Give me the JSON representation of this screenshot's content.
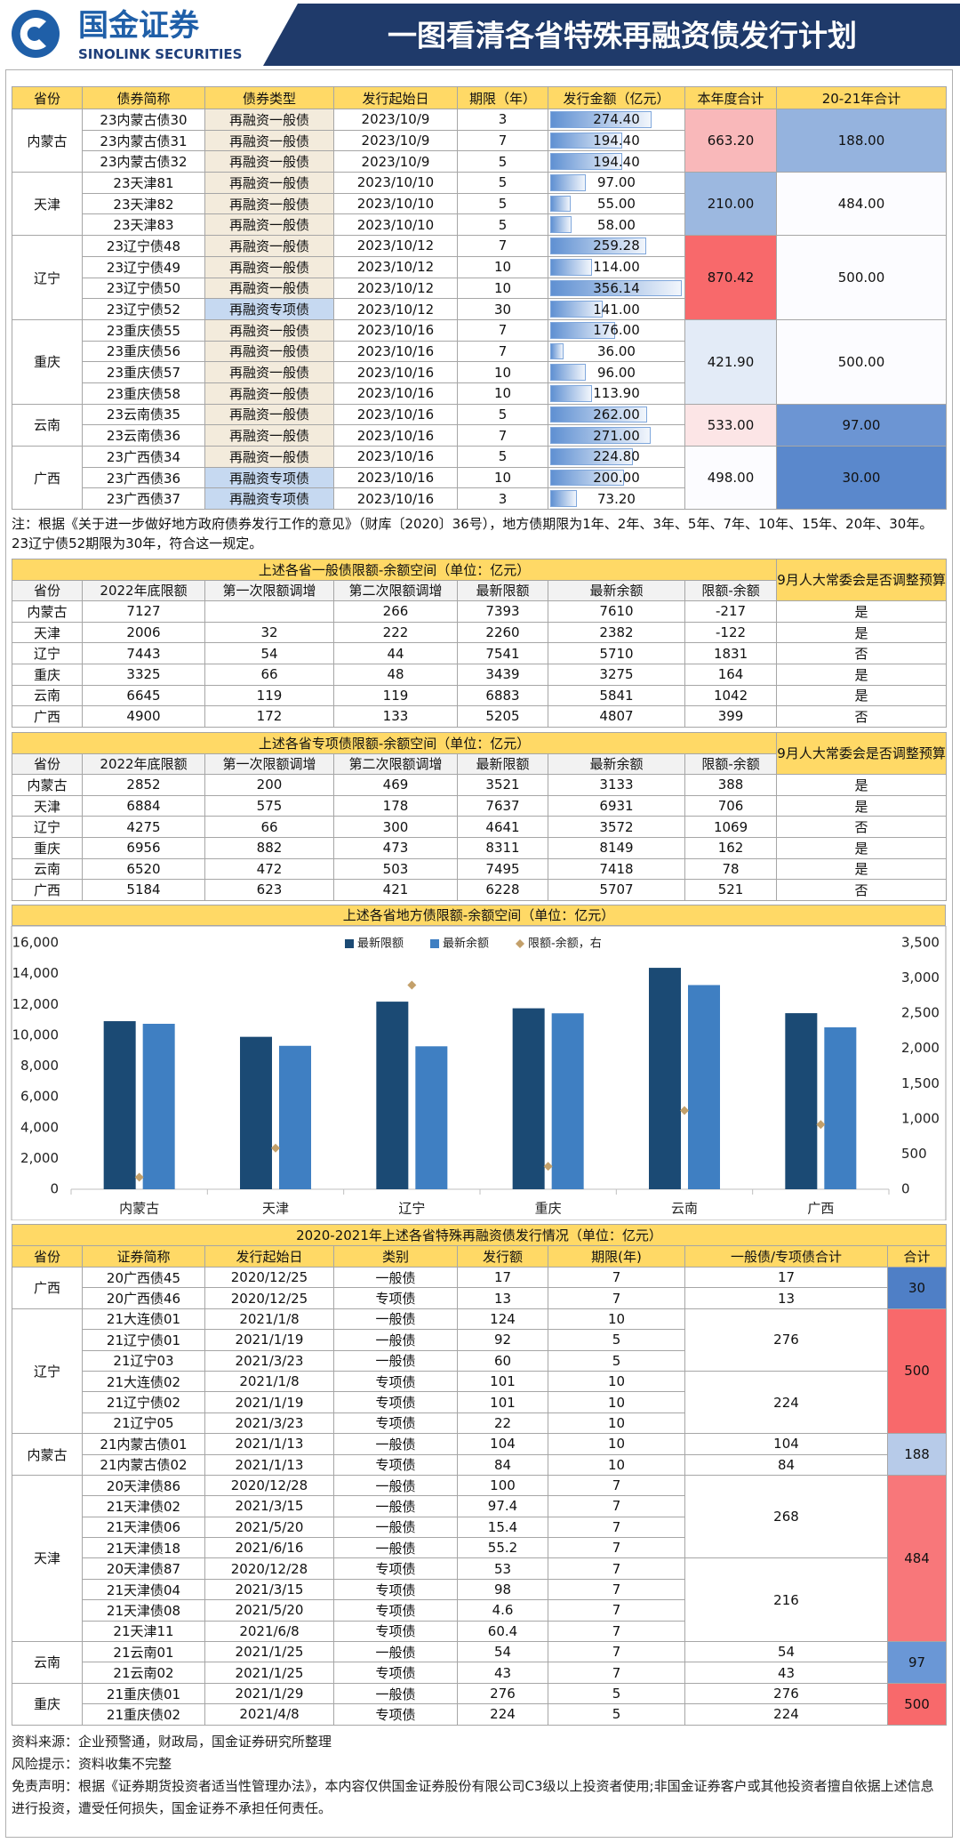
{
  "header": {
    "logo_cn": "国金证券",
    "logo_en": "SINOLINK SECURITIES",
    "title": "一图看清各省特殊再融资债发行计划"
  },
  "issuance_plan": {
    "headers": [
      "省份",
      "债券简称",
      "债券类型",
      "发行起始日",
      "期限（年）",
      "发行金额（亿元）",
      "本年度合计",
      "20-21年合计"
    ],
    "groups": [
      {
        "province": "内蒙古",
        "year_total": "663.20",
        "year_total_color": "#f9b8ba",
        "total_2021": "188.00",
        "total_2021_color": "#95b3de",
        "bonds": [
          {
            "name": "23内蒙古债30",
            "type": "再融资一般债",
            "type_color": "#f3ebdc",
            "date": "2023/10/9",
            "term": 3,
            "amount": "274.40"
          },
          {
            "name": "23内蒙古债31",
            "type": "再融资一般债",
            "type_color": "#f3ebdc",
            "date": "2023/10/9",
            "term": 7,
            "amount": "194.40"
          },
          {
            "name": "23内蒙古债32",
            "type": "再融资一般债",
            "type_color": "#f3ebdc",
            "date": "2023/10/9",
            "term": 5,
            "amount": "194.40"
          }
        ]
      },
      {
        "province": "天津",
        "year_total": "210.00",
        "year_total_color": "#9cb8e0",
        "total_2021": "484.00",
        "total_2021_color": "#fcfcff",
        "bonds": [
          {
            "name": "23天津81",
            "type": "再融资一般债",
            "type_color": "#f3ebdc",
            "date": "2023/10/10",
            "term": 5,
            "amount": "97.00"
          },
          {
            "name": "23天津82",
            "type": "再融资一般债",
            "type_color": "#f3ebdc",
            "date": "2023/10/10",
            "term": 5,
            "amount": "55.00"
          },
          {
            "name": "23天津83",
            "type": "再融资一般债",
            "type_color": "#f3ebdc",
            "date": "2023/10/10",
            "term": 5,
            "amount": "58.00"
          }
        ]
      },
      {
        "province": "辽宁",
        "year_total": "870.42",
        "year_total_color": "#f8696b",
        "total_2021": "500.00",
        "total_2021_color": "#fcfcff",
        "bonds": [
          {
            "name": "23辽宁债48",
            "type": "再融资一般债",
            "type_color": "#f3ebdc",
            "date": "2023/10/12",
            "term": 7,
            "amount": "259.28"
          },
          {
            "name": "23辽宁债49",
            "type": "再融资一般债",
            "type_color": "#f3ebdc",
            "date": "2023/10/12",
            "term": 10,
            "amount": "114.00"
          },
          {
            "name": "23辽宁债50",
            "type": "再融资一般债",
            "type_color": "#f3ebdc",
            "date": "2023/10/12",
            "term": 10,
            "amount": "356.14"
          },
          {
            "name": "23辽宁债52",
            "type": "再融资专项债",
            "type_color": "#c6d9f1",
            "date": "2023/10/12",
            "term": 30,
            "amount": "141.00"
          }
        ]
      },
      {
        "province": "重庆",
        "year_total": "421.90",
        "year_total_color": "#e3ebf7",
        "total_2021": "500.00",
        "total_2021_color": "#fcfcff",
        "bonds": [
          {
            "name": "23重庆债55",
            "type": "再融资一般债",
            "type_color": "#f3ebdc",
            "date": "2023/10/16",
            "term": 7,
            "amount": "176.00"
          },
          {
            "name": "23重庆债56",
            "type": "再融资一般债",
            "type_color": "#f3ebdc",
            "date": "2023/10/16",
            "term": 7,
            "amount": "36.00"
          },
          {
            "name": "23重庆债57",
            "type": "再融资一般债",
            "type_color": "#f3ebdc",
            "date": "2023/10/16",
            "term": 10,
            "amount": "96.00"
          },
          {
            "name": "23重庆债58",
            "type": "再融资一般债",
            "type_color": "#f3ebdc",
            "date": "2023/10/16",
            "term": 10,
            "amount": "113.90"
          }
        ]
      },
      {
        "province": "云南",
        "year_total": "533.00",
        "year_total_color": "#fce5e6",
        "total_2021": "97.00",
        "total_2021_color": "#6c95d3",
        "bonds": [
          {
            "name": "23云南债35",
            "type": "再融资一般债",
            "type_color": "#f3ebdc",
            "date": "2023/10/16",
            "term": 5,
            "amount": "262.00"
          },
          {
            "name": "23云南债36",
            "type": "再融资一般债",
            "type_color": "#f3ebdc",
            "date": "2023/10/16",
            "term": 7,
            "amount": "271.00"
          }
        ]
      },
      {
        "province": "广西",
        "year_total": "498.00",
        "year_total_color": "#fcfcff",
        "total_2021": "30.00",
        "total_2021_color": "#5a88cc",
        "bonds": [
          {
            "name": "23广西债34",
            "type": "再融资一般债",
            "type_color": "#f3ebdc",
            "date": "2023/10/16",
            "term": 5,
            "amount": "224.80"
          },
          {
            "name": "23广西债36",
            "type": "再融资专项债",
            "type_color": "#c6d9f1",
            "date": "2023/10/16",
            "term": 10,
            "amount": "200.00"
          },
          {
            "name": "23广西债37",
            "type": "再融资专项债",
            "type_color": "#c6d9f1",
            "date": "2023/10/16",
            "term": 3,
            "amount": "73.20"
          }
        ]
      }
    ]
  },
  "note": "注：根据《关于进一步做好地方政府债券发行工作的意见》（财库〔2020〕36号），地方债期限为1年、2年、3年、5年、7年、10年、15年、20年、30年。23辽宁债52期限为30年，符合这一规定。",
  "general_debt": {
    "title": "上述各省一般债限额-余额空间（单位：亿元）",
    "question": "9月人大常委会是否调整预算",
    "headers": [
      "省份",
      "2022年底限额",
      "第一次限额调增",
      "第二次限额调增",
      "最新限额",
      "最新余额",
      "限额-余额"
    ],
    "rows": [
      [
        "内蒙古",
        7127,
        null,
        266,
        7393,
        7610,
        -217,
        "是"
      ],
      [
        "天津",
        2006,
        32,
        222,
        2260,
        2382,
        -122,
        "是"
      ],
      [
        "辽宁",
        7443,
        54,
        44,
        7541,
        5710,
        1831,
        "否"
      ],
      [
        "重庆",
        3325,
        66,
        48,
        3439,
        3275,
        164,
        "是"
      ],
      [
        "云南",
        6645,
        119,
        119,
        6883,
        5841,
        1042,
        "是"
      ],
      [
        "广西",
        4900,
        172,
        133,
        5205,
        4807,
        399,
        "否"
      ]
    ]
  },
  "special_debt": {
    "title": "上述各省专项债限额-余额空间（单位：亿元）",
    "question": "9月人大常委会是否调整预算",
    "headers": [
      "省份",
      "2022年底限额",
      "第一次限额调增",
      "第二次限额调增",
      "最新限额",
      "最新余额",
      "限额-余额"
    ],
    "rows": [
      [
        "内蒙古",
        2852,
        200,
        469,
        3521,
        3133,
        388,
        "是"
      ],
      [
        "天津",
        6884,
        575,
        178,
        7637,
        6931,
        706,
        "是"
      ],
      [
        "辽宁",
        4275,
        66,
        300,
        4641,
        3572,
        1069,
        "否"
      ],
      [
        "重庆",
        6956,
        882,
        473,
        8311,
        8149,
        162,
        "是"
      ],
      [
        "云南",
        6520,
        472,
        503,
        7495,
        7418,
        78,
        "是"
      ],
      [
        "广西",
        5184,
        623,
        421,
        6228,
        5707,
        521,
        "否"
      ]
    ]
  },
  "chart_data": {
    "type": "bar",
    "title": "上述各省地方债限额-余额空间（单位：亿元）",
    "categories": [
      "内蒙古",
      "天津",
      "辽宁",
      "重庆",
      "云南",
      "广西"
    ],
    "series": [
      {
        "name": "最新限额",
        "color": "#1b4a74",
        "values": [
          10914,
          9897,
          12182,
          11750,
          14378,
          11433
        ]
      },
      {
        "name": "最新余额",
        "color": "#3f7fc2",
        "values": [
          10743,
          9313,
          9282,
          11424,
          13259,
          10514
        ]
      },
      {
        "name": "限额-余额，右",
        "color": "#c3a06a",
        "type": "scatter",
        "axis": "y2",
        "values": [
          171,
          584,
          2900,
          326,
          1119,
          919
        ]
      }
    ],
    "ylim": [
      0,
      16000
    ],
    "yticks": [
      0,
      {
        "value": 2000,
        "label": "2,000"
      },
      {
        "value": 4000,
        "label": "4,000"
      },
      {
        "value": 6000,
        "label": "6,000"
      },
      {
        "value": 8000,
        "label": "8,000"
      },
      {
        "value": 10000,
        "label": "10,000"
      },
      {
        "value": 12000,
        "label": "12,000"
      },
      {
        "value": 14000,
        "label": "14,000"
      },
      {
        "value": 16000,
        "label": "16,000"
      }
    ],
    "y2lim": [
      0,
      3500
    ],
    "y2ticks": [
      0,
      500,
      {
        "value": 1000,
        "label": "1,000"
      },
      {
        "value": 1500,
        "label": "1,500"
      },
      {
        "value": 2000,
        "label": "2,000"
      },
      {
        "value": 2500,
        "label": "2,500"
      },
      {
        "value": 3000,
        "label": "3,000"
      },
      {
        "value": 3500,
        "label": "3,500"
      }
    ],
    "legend": "top",
    "grid": false
  },
  "history": {
    "title": "2020-2021年上述各省特殊再融资债发行情况（单位：亿元）",
    "headers": [
      "省份",
      "证券简称",
      "发行起始日",
      "类别",
      "发行额",
      "期限(年)",
      "一般债/专项债合计",
      "合计"
    ],
    "groups": [
      {
        "province": "广西",
        "total": 30,
        "total_color": "#4f7fc6",
        "subgroups": [
          {
            "subtotal": 17,
            "bonds": [
              {
                "name": "20广西债45",
                "date": "2020/12/25",
                "category": "一般债",
                "amount": 17,
                "term": 7
              }
            ]
          },
          {
            "subtotal": 13,
            "bonds": [
              {
                "name": "20广西债46",
                "date": "2020/12/25",
                "category": "专项债",
                "amount": 13,
                "term": 7
              }
            ]
          }
        ]
      },
      {
        "province": "辽宁",
        "total": 500,
        "total_color": "#f8696b",
        "subgroups": [
          {
            "subtotal": 276,
            "bonds": [
              {
                "name": "21大连债01",
                "date": "2021/1/8",
                "category": "一般债",
                "amount": 124,
                "term": 10
              },
              {
                "name": "21辽宁债01",
                "date": "2021/1/19",
                "category": "一般债",
                "amount": 92,
                "term": 5
              },
              {
                "name": "21辽宁03",
                "date": "2021/3/23",
                "category": "一般债",
                "amount": 60,
                "term": 5
              }
            ]
          },
          {
            "subtotal": 224,
            "bonds": [
              {
                "name": "21大连债02",
                "date": "2021/1/8",
                "category": "专项债",
                "amount": 101,
                "term": 10
              },
              {
                "name": "21辽宁债02",
                "date": "2021/1/19",
                "category": "专项债",
                "amount": 101,
                "term": 10
              },
              {
                "name": "21辽宁05",
                "date": "2021/3/23",
                "category": "专项债",
                "amount": 22,
                "term": 10
              }
            ]
          }
        ]
      },
      {
        "province": "内蒙古",
        "total": 188,
        "total_color": "#b7cbe9",
        "subgroups": [
          {
            "subtotal": 104,
            "bonds": [
              {
                "name": "21内蒙古债01",
                "date": "2021/1/13",
                "category": "一般债",
                "amount": 104,
                "term": 10
              }
            ]
          },
          {
            "subtotal": 84,
            "bonds": [
              {
                "name": "21内蒙古债02",
                "date": "2021/1/13",
                "category": "专项债",
                "amount": 84,
                "term": 10
              }
            ]
          }
        ]
      },
      {
        "province": "天津",
        "total": 484,
        "total_color": "#f8777a",
        "subgroups": [
          {
            "subtotal": 268,
            "bonds": [
              {
                "name": "20天津债86",
                "date": "2020/12/28",
                "category": "一般债",
                "amount": 100,
                "term": 7
              },
              {
                "name": "21天津债02",
                "date": "2021/3/15",
                "category": "一般债",
                "amount": 97.4,
                "term": 7
              },
              {
                "name": "21天津债06",
                "date": "2021/5/20",
                "category": "一般债",
                "amount": 15.4,
                "term": 7
              },
              {
                "name": "21天津债18",
                "date": "2021/6/16",
                "category": "一般债",
                "amount": 55.2,
                "term": 7
              }
            ]
          },
          {
            "subtotal": 216,
            "bonds": [
              {
                "name": "20天津债87",
                "date": "2020/12/28",
                "category": "专项债",
                "amount": 53,
                "term": 7
              },
              {
                "name": "21天津债04",
                "date": "2021/3/15",
                "category": "专项债",
                "amount": 98,
                "term": 7
              },
              {
                "name": "21天津债08",
                "date": "2021/5/20",
                "category": "专项债",
                "amount": 4.6,
                "term": 7
              },
              {
                "name": "21天津11",
                "date": "2021/6/8",
                "category": "专项债",
                "amount": 60.4,
                "term": 7
              }
            ]
          }
        ]
      },
      {
        "province": "云南",
        "total": 97,
        "total_color": "#6a97d6",
        "subgroups": [
          {
            "subtotal": 54,
            "bonds": [
              {
                "name": "21云南01",
                "date": "2021/1/25",
                "category": "一般债",
                "amount": 54,
                "term": 7
              }
            ]
          },
          {
            "subtotal": 43,
            "bonds": [
              {
                "name": "21云南02",
                "date": "2021/1/25",
                "category": "专项债",
                "amount": 43,
                "term": 7
              }
            ]
          }
        ]
      },
      {
        "province": "重庆",
        "total": 500,
        "total_color": "#f8696b",
        "subgroups": [
          {
            "subtotal": 276,
            "bonds": [
              {
                "name": "21重庆债01",
                "date": "2021/1/29",
                "category": "一般债",
                "amount": 276,
                "term": 5
              }
            ]
          },
          {
            "subtotal": 224,
            "bonds": [
              {
                "name": "21重庆债02",
                "date": "2021/4/8",
                "category": "专项债",
                "amount": 224,
                "term": 5
              }
            ]
          }
        ]
      }
    ]
  },
  "footer": {
    "source": "资料来源：企业预警通，财政局，国金证券研究所整理",
    "risk": "风险提示：资料收集不完整",
    "disclaimer": "免责声明：根据《证券期货投资者适当性管理办法》，本内容仅供国金证券股份有限公司C3级以上投资者使用;非国金证券客户或其他投资者擅自依据上述信息进行投资，遭受任何损失，国金证券不承担任何责任。"
  }
}
